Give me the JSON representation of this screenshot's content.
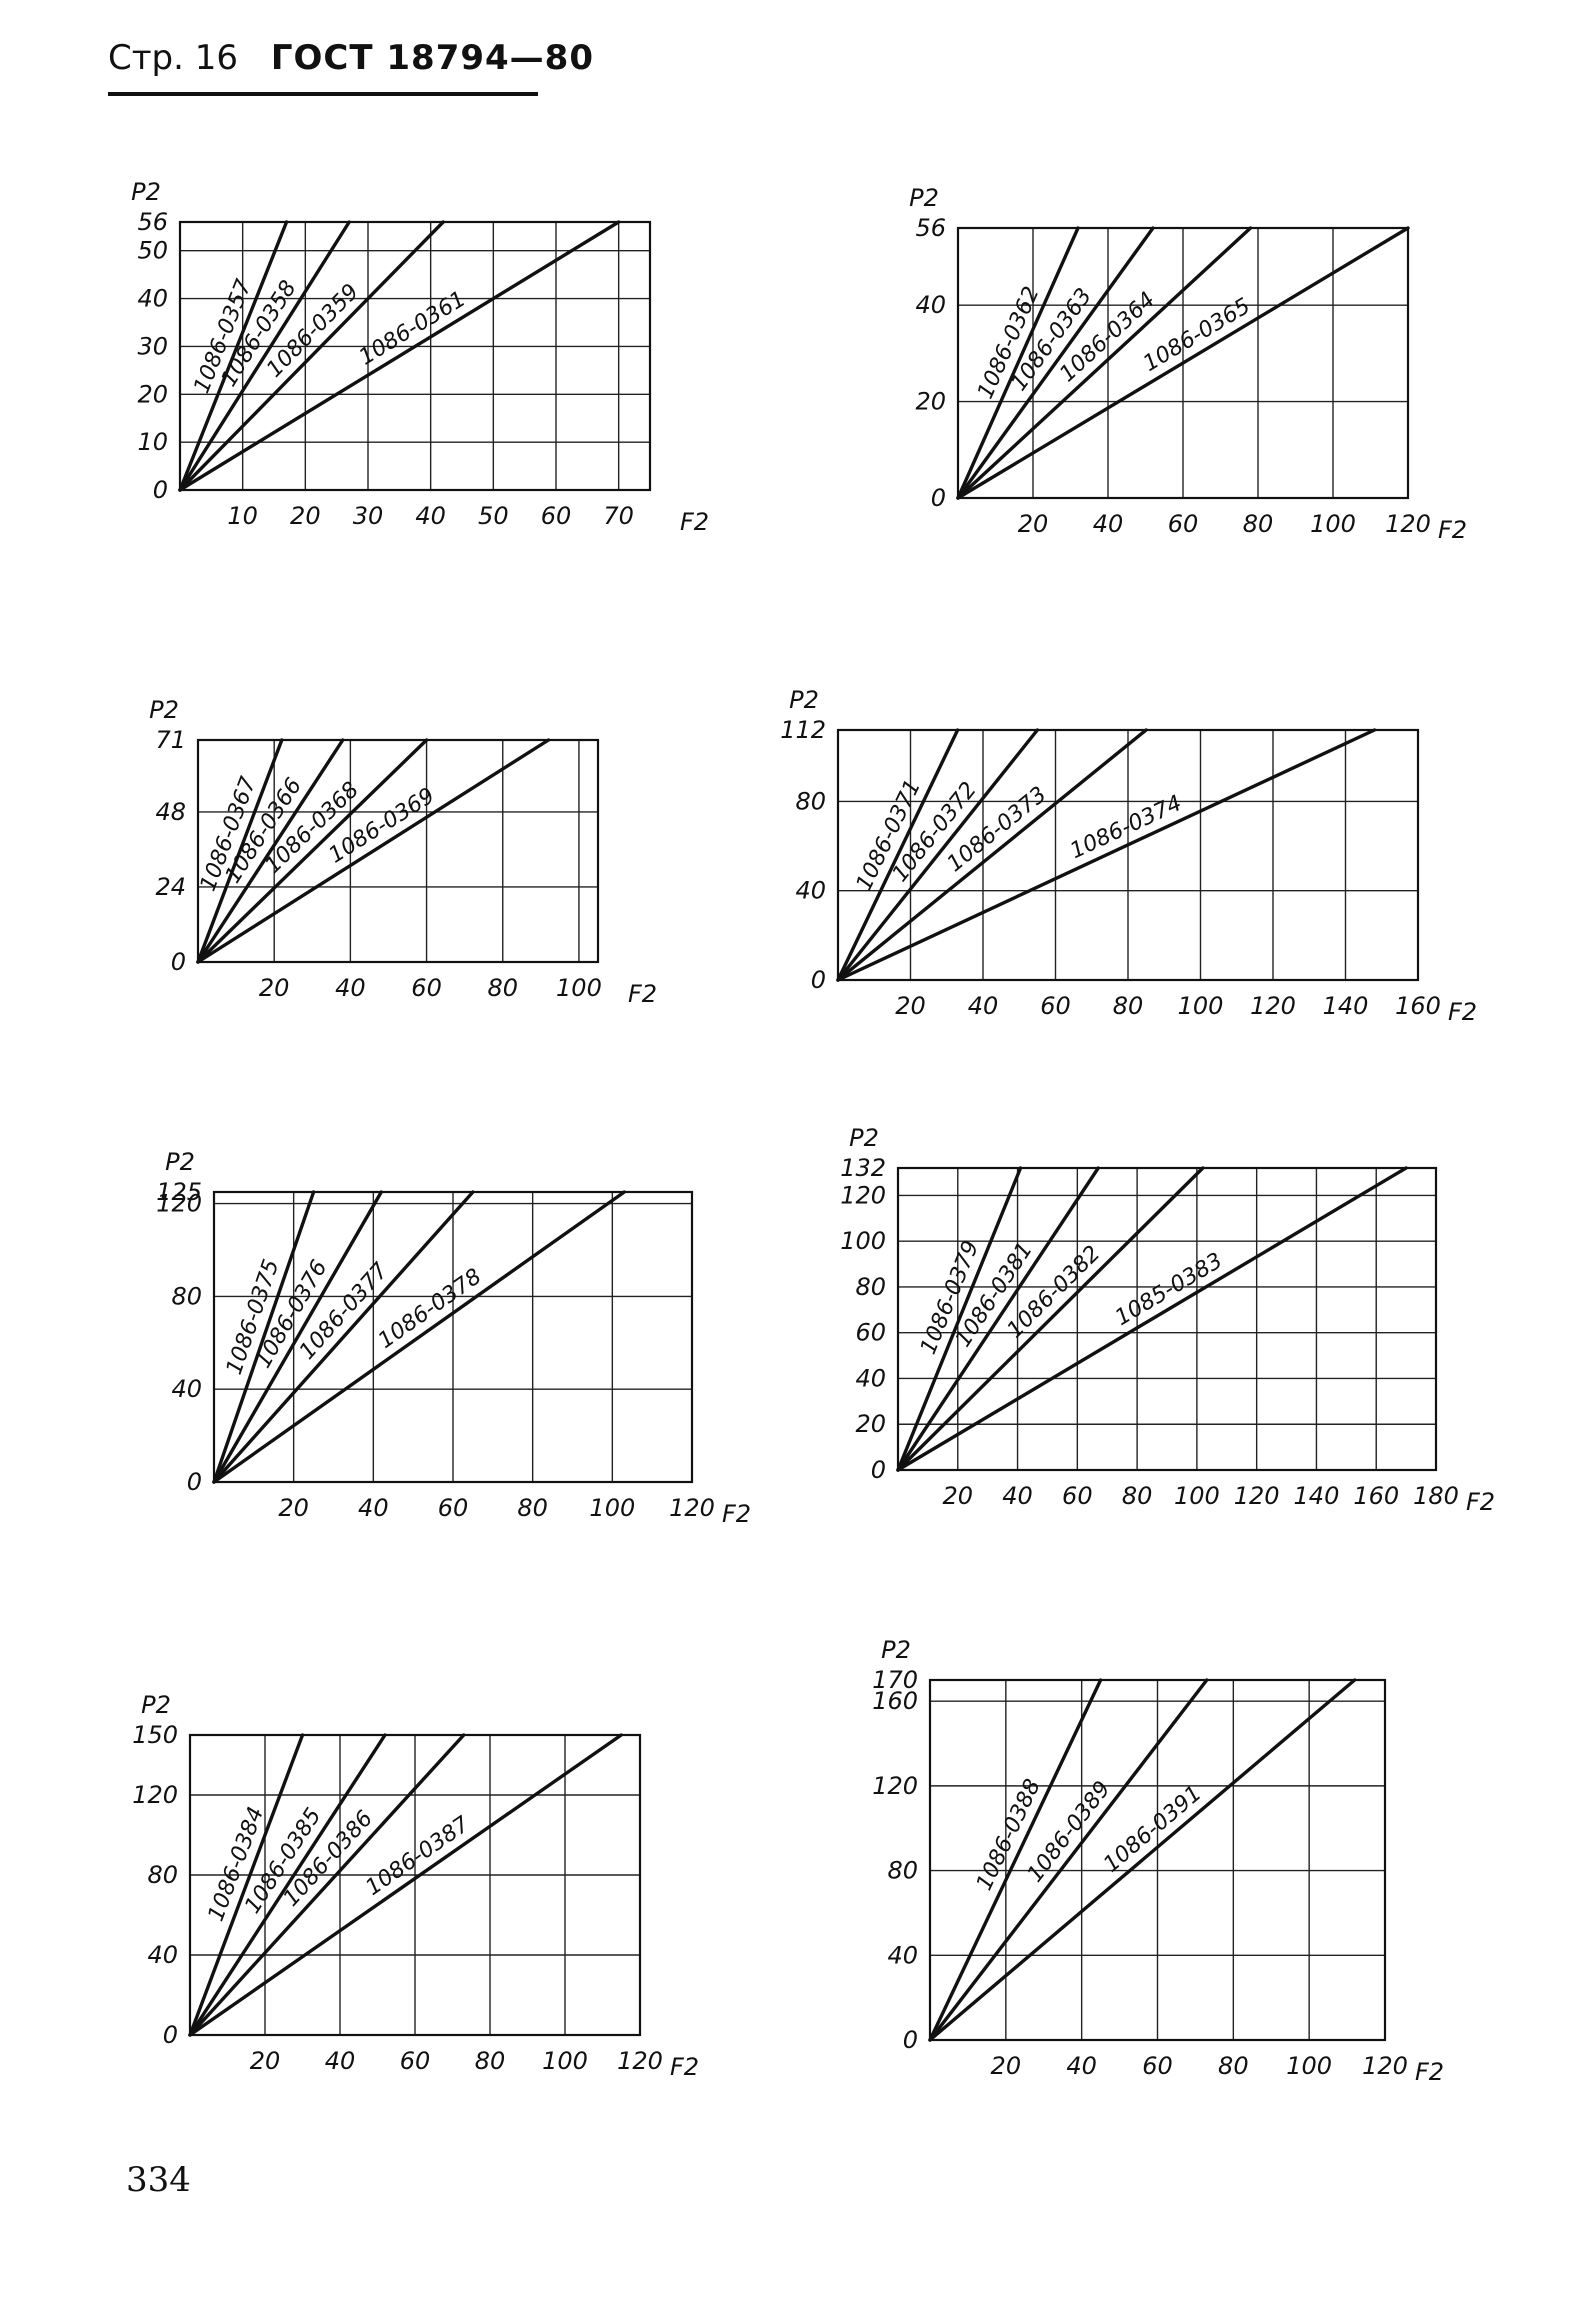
{
  "header": {
    "page_label": "Стр. 16",
    "standard": "ГОСТ 18794—80"
  },
  "page_number": "334",
  "chart_data": [
    {
      "type": "line",
      "ylabel": "P2",
      "xlabel": "F2",
      "xlim": [
        0,
        75
      ],
      "ylim": [
        0,
        56
      ],
      "x_ticks": [
        "10",
        "20",
        "30",
        "40",
        "50",
        "60",
        "70"
      ],
      "x_tick_values": [
        10,
        20,
        30,
        40,
        50,
        60,
        70
      ],
      "y_ticks": [
        "0",
        "10",
        "20",
        "30",
        "40",
        "50",
        "56"
      ],
      "y_tick_values": [
        0,
        10,
        20,
        30,
        40,
        50,
        56
      ],
      "series": [
        {
          "name": "1086-0357",
          "x": [
            0,
            17
          ],
          "y": [
            0,
            56
          ]
        },
        {
          "name": "1086-0358",
          "x": [
            0,
            27
          ],
          "y": [
            0,
            56
          ]
        },
        {
          "name": "1086-0359",
          "x": [
            0,
            42
          ],
          "y": [
            0,
            56
          ]
        },
        {
          "name": "1086-0361",
          "x": [
            0,
            70
          ],
          "y": [
            0,
            56
          ]
        }
      ]
    },
    {
      "type": "line",
      "ylabel": "P2",
      "xlabel": "F2",
      "xlim": [
        0,
        120
      ],
      "ylim": [
        0,
        56
      ],
      "x_ticks": [
        "20",
        "40",
        "60",
        "80",
        "100",
        "120"
      ],
      "x_tick_values": [
        20,
        40,
        60,
        80,
        100,
        120
      ],
      "y_ticks": [
        "0",
        "20",
        "40",
        "56"
      ],
      "y_tick_values": [
        0,
        20,
        40,
        56
      ],
      "series": [
        {
          "name": "1086-0362",
          "x": [
            0,
            32
          ],
          "y": [
            0,
            56
          ]
        },
        {
          "name": "1086-0363",
          "x": [
            0,
            52
          ],
          "y": [
            0,
            56
          ]
        },
        {
          "name": "1086-0364",
          "x": [
            0,
            78
          ],
          "y": [
            0,
            56
          ]
        },
        {
          "name": "1086-0365",
          "x": [
            0,
            120
          ],
          "y": [
            0,
            56
          ]
        }
      ]
    },
    {
      "type": "line",
      "ylabel": "P2",
      "xlabel": "F2",
      "xlim": [
        0,
        105
      ],
      "ylim": [
        0,
        71
      ],
      "x_ticks": [
        "20",
        "40",
        "60",
        "80",
        "100"
      ],
      "x_tick_values": [
        20,
        40,
        60,
        80,
        100
      ],
      "y_ticks": [
        "0",
        "24",
        "48",
        "71"
      ],
      "y_tick_values": [
        0,
        24,
        48,
        71
      ],
      "series": [
        {
          "name": "1086-0367",
          "x": [
            0,
            22
          ],
          "y": [
            0,
            71
          ]
        },
        {
          "name": "1086-0366",
          "x": [
            0,
            38
          ],
          "y": [
            0,
            71
          ]
        },
        {
          "name": "1086-0368",
          "x": [
            0,
            60
          ],
          "y": [
            0,
            71
          ]
        },
        {
          "name": "1086-0369",
          "x": [
            0,
            92
          ],
          "y": [
            0,
            71
          ]
        }
      ]
    },
    {
      "type": "line",
      "ylabel": "P2",
      "xlabel": "F2",
      "xlim": [
        0,
        160
      ],
      "ylim": [
        0,
        112
      ],
      "x_ticks": [
        "20",
        "40",
        "60",
        "80",
        "100",
        "120",
        "140",
        "160"
      ],
      "x_tick_values": [
        20,
        40,
        60,
        80,
        100,
        120,
        140,
        160
      ],
      "y_ticks": [
        "0",
        "40",
        "80",
        "112"
      ],
      "y_tick_values": [
        0,
        40,
        80,
        112
      ],
      "series": [
        {
          "name": "1086-0371",
          "x": [
            0,
            33
          ],
          "y": [
            0,
            112
          ]
        },
        {
          "name": "1086-0372",
          "x": [
            0,
            55
          ],
          "y": [
            0,
            112
          ]
        },
        {
          "name": "1086-0373",
          "x": [
            0,
            85
          ],
          "y": [
            0,
            112
          ]
        },
        {
          "name": "1086-0374",
          "x": [
            0,
            148
          ],
          "y": [
            0,
            112
          ]
        }
      ]
    },
    {
      "type": "line",
      "ylabel": "P2",
      "xlabel": "F2",
      "xlim": [
        0,
        120
      ],
      "ylim": [
        0,
        125
      ],
      "x_ticks": [
        "20",
        "40",
        "60",
        "80",
        "100",
        "120"
      ],
      "x_tick_values": [
        20,
        40,
        60,
        80,
        100,
        120
      ],
      "y_ticks": [
        "0",
        "40",
        "80",
        "120",
        "125"
      ],
      "y_tick_values": [
        0,
        40,
        80,
        120,
        125
      ],
      "series": [
        {
          "name": "1086-0375",
          "x": [
            0,
            25
          ],
          "y": [
            0,
            125
          ]
        },
        {
          "name": "1086-0376",
          "x": [
            0,
            42
          ],
          "y": [
            0,
            125
          ]
        },
        {
          "name": "1086-0377",
          "x": [
            0,
            65
          ],
          "y": [
            0,
            125
          ]
        },
        {
          "name": "1086-0378",
          "x": [
            0,
            103
          ],
          "y": [
            0,
            125
          ]
        }
      ]
    },
    {
      "type": "line",
      "ylabel": "P2",
      "xlabel": "F2",
      "xlim": [
        0,
        180
      ],
      "ylim": [
        0,
        132
      ],
      "x_ticks": [
        "20",
        "40",
        "60",
        "80",
        "100",
        "120",
        "140",
        "160",
        "180"
      ],
      "x_tick_values": [
        20,
        40,
        60,
        80,
        100,
        120,
        140,
        160,
        180
      ],
      "y_ticks": [
        "0",
        "20",
        "40",
        "60",
        "80",
        "100",
        "120",
        "132"
      ],
      "y_tick_values": [
        0,
        20,
        40,
        60,
        80,
        100,
        120,
        132
      ],
      "series": [
        {
          "name": "1086-0379",
          "x": [
            0,
            41
          ],
          "y": [
            0,
            132
          ]
        },
        {
          "name": "1086-0381",
          "x": [
            0,
            67
          ],
          "y": [
            0,
            132
          ]
        },
        {
          "name": "1086-0382",
          "x": [
            0,
            102
          ],
          "y": [
            0,
            132
          ]
        },
        {
          "name": "1085-0383",
          "x": [
            0,
            170
          ],
          "y": [
            0,
            132
          ]
        }
      ]
    },
    {
      "type": "line",
      "ylabel": "P2",
      "xlabel": "F2",
      "xlim": [
        0,
        120
      ],
      "ylim": [
        0,
        150
      ],
      "x_ticks": [
        "20",
        "40",
        "60",
        "80",
        "100",
        "120"
      ],
      "x_tick_values": [
        20,
        40,
        60,
        80,
        100,
        120
      ],
      "y_ticks": [
        "0",
        "40",
        "80",
        "120",
        "150"
      ],
      "y_tick_values": [
        0,
        40,
        80,
        120,
        150
      ],
      "series": [
        {
          "name": "1086-0384",
          "x": [
            0,
            30
          ],
          "y": [
            0,
            150
          ]
        },
        {
          "name": "1086-0385",
          "x": [
            0,
            52
          ],
          "y": [
            0,
            150
          ]
        },
        {
          "name": "1086-0386",
          "x": [
            0,
            73
          ],
          "y": [
            0,
            150
          ]
        },
        {
          "name": "1086-0387",
          "x": [
            0,
            115
          ],
          "y": [
            0,
            150
          ]
        }
      ]
    },
    {
      "type": "line",
      "ylabel": "P2",
      "xlabel": "F2",
      "xlim": [
        0,
        120
      ],
      "ylim": [
        0,
        170
      ],
      "x_ticks": [
        "20",
        "40",
        "60",
        "80",
        "100",
        "120"
      ],
      "x_tick_values": [
        20,
        40,
        60,
        80,
        100,
        120
      ],
      "y_ticks": [
        "0",
        "40",
        "80",
        "120",
        "160",
        "170"
      ],
      "y_tick_values": [
        0,
        40,
        80,
        120,
        160,
        170
      ],
      "series": [
        {
          "name": "1086-0388",
          "x": [
            0,
            45
          ],
          "y": [
            0,
            170
          ]
        },
        {
          "name": "1086-0389",
          "x": [
            0,
            73
          ],
          "y": [
            0,
            170
          ]
        },
        {
          "name": "1086-0391",
          "x": [
            0,
            112
          ],
          "y": [
            0,
            170
          ]
        }
      ]
    }
  ]
}
